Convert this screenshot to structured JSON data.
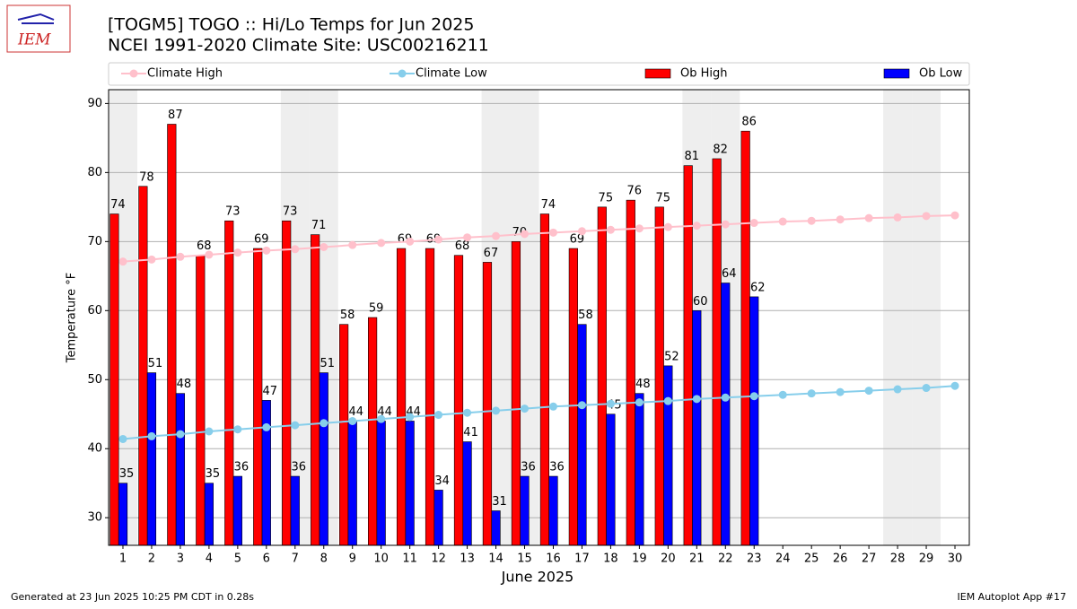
{
  "chart_data": {
    "type": "bar",
    "title": "[TOGM5] TOGO :: Hi/Lo Temps for Jun 2025",
    "subtitle": "NCEI 1991-2020 Climate Site: USC00216211",
    "x_label": "June 2025",
    "y_label": "Temperature °F",
    "logo_text": "IEM",
    "footer_left": "Generated at 23 Jun 2025 10:25 PM CDT in 0.28s",
    "footer_right": "IEM Autoplot App #17",
    "x": [
      1,
      2,
      3,
      4,
      5,
      6,
      7,
      8,
      9,
      10,
      11,
      12,
      13,
      14,
      15,
      16,
      17,
      18,
      19,
      20,
      21,
      22,
      23,
      24,
      25,
      26,
      27,
      28,
      29,
      30
    ],
    "xlim": [
      0.5,
      30.5
    ],
    "xticks": [
      1,
      2,
      3,
      4,
      5,
      6,
      7,
      8,
      9,
      10,
      11,
      12,
      13,
      14,
      15,
      16,
      17,
      18,
      19,
      20,
      21,
      22,
      23,
      24,
      25,
      26,
      27,
      28,
      29,
      30
    ],
    "ylim": [
      26,
      92
    ],
    "yticks": [
      30,
      40,
      50,
      60,
      70,
      80,
      90
    ],
    "grid": true,
    "shaded_days": [
      1,
      7,
      8,
      14,
      15,
      21,
      22,
      28,
      29
    ],
    "legend_position": "top",
    "series": [
      {
        "name": "Climate High",
        "type": "line",
        "color": "#ffc0cb",
        "values": [
          67.1,
          67.4,
          67.8,
          68.1,
          68.4,
          68.7,
          68.9,
          69.2,
          69.5,
          69.8,
          70.0,
          70.3,
          70.6,
          70.8,
          71.1,
          71.3,
          71.5,
          71.7,
          71.9,
          72.1,
          72.3,
          72.5,
          72.7,
          72.9,
          73.0,
          73.2,
          73.4,
          73.5,
          73.7,
          73.8
        ]
      },
      {
        "name": "Climate Low",
        "type": "line",
        "color": "#87ceeb",
        "values": [
          41.4,
          41.8,
          42.1,
          42.5,
          42.8,
          43.1,
          43.4,
          43.7,
          44.0,
          44.3,
          44.6,
          44.9,
          45.2,
          45.5,
          45.8,
          46.1,
          46.3,
          46.5,
          46.7,
          46.9,
          47.2,
          47.4,
          47.6,
          47.8,
          48.0,
          48.2,
          48.4,
          48.6,
          48.8,
          49.1
        ]
      },
      {
        "name": "Ob High",
        "type": "bar",
        "color": "#ff0000",
        "values": [
          74,
          78,
          87,
          68,
          73,
          69,
          73,
          71,
          58,
          59,
          69,
          69,
          68,
          67,
          70,
          74,
          69,
          75,
          76,
          75,
          81,
          82,
          86,
          null,
          null,
          null,
          null,
          null,
          null,
          null
        ]
      },
      {
        "name": "Ob Low",
        "type": "bar",
        "color": "#0000ff",
        "values": [
          35,
          51,
          48,
          35,
          36,
          47,
          36,
          51,
          44,
          44,
          44,
          34,
          41,
          31,
          36,
          36,
          58,
          45,
          48,
          52,
          60,
          64,
          62,
          null,
          null,
          null,
          null,
          null,
          null,
          null
        ]
      }
    ]
  }
}
